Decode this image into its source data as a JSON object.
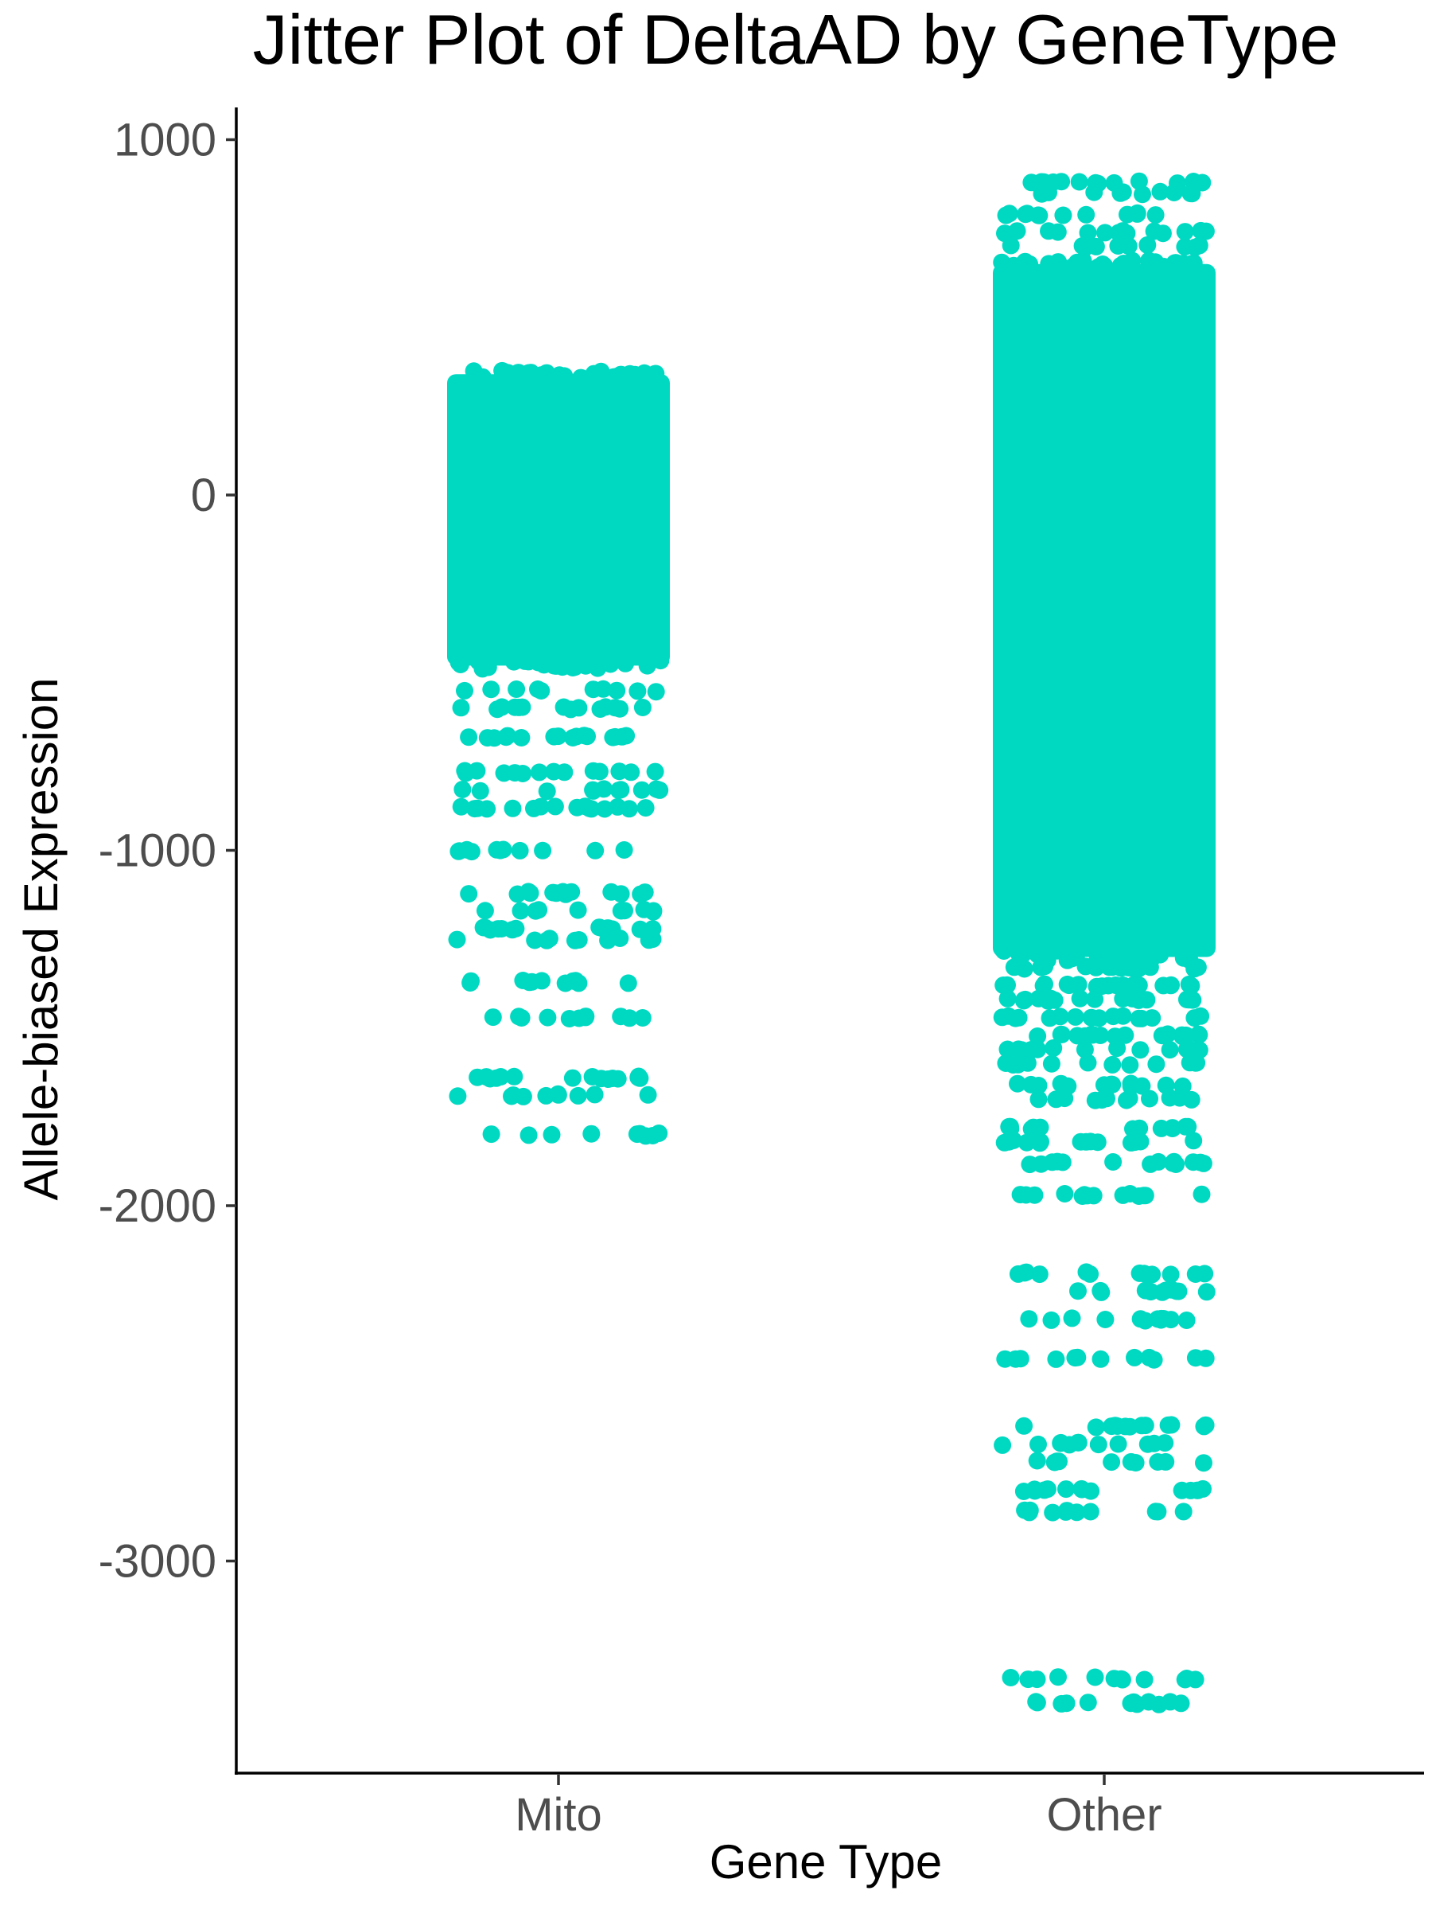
{
  "chart_data": {
    "type": "scatter",
    "title": "Jitter Plot of DeltaAD by GeneType",
    "xlabel": "Gene Type",
    "ylabel": "Allele-biased Expression",
    "categories": [
      "Mito",
      "Other"
    ],
    "ylim": [
      -3600,
      1100
    ],
    "y_ticks": [
      1000,
      0,
      -1000,
      -2000,
      -3000
    ],
    "y_tick_labels": [
      "1000",
      "0",
      "-1000",
      "-2000",
      "-3000"
    ],
    "grid": false,
    "legend": "none",
    "point_color": "#00d9c2",
    "series": [
      {
        "category": "Mito",
        "dense_range": [
          -480,
          340
        ],
        "sparse_levels": [
          {
            "y": -550,
            "n": 10
          },
          {
            "y": -600,
            "n": 14
          },
          {
            "y": -680,
            "n": 16
          },
          {
            "y": -780,
            "n": 14
          },
          {
            "y": -830,
            "n": 12
          },
          {
            "y": -880,
            "n": 16
          },
          {
            "y": -1000,
            "n": 11
          },
          {
            "y": -1120,
            "n": 14
          },
          {
            "y": -1170,
            "n": 10
          },
          {
            "y": -1220,
            "n": 14
          },
          {
            "y": -1250,
            "n": 10
          },
          {
            "y": -1370,
            "n": 11
          },
          {
            "y": -1470,
            "n": 11
          },
          {
            "y": -1640,
            "n": 15
          },
          {
            "y": -1690,
            "n": 10
          },
          {
            "y": -1800,
            "n": 9
          }
        ]
      },
      {
        "category": "Other",
        "dense_range": [
          -1300,
          650
        ],
        "sparse_levels": [
          {
            "y": 880,
            "n": 14
          },
          {
            "y": 850,
            "n": 10
          },
          {
            "y": 790,
            "n": 12
          },
          {
            "y": 740,
            "n": 14
          },
          {
            "y": 700,
            "n": 10
          },
          {
            "y": -1330,
            "n": 18
          },
          {
            "y": -1380,
            "n": 20
          },
          {
            "y": -1420,
            "n": 18
          },
          {
            "y": -1470,
            "n": 16
          },
          {
            "y": -1520,
            "n": 18
          },
          {
            "y": -1560,
            "n": 16
          },
          {
            "y": -1600,
            "n": 12
          },
          {
            "y": -1660,
            "n": 14
          },
          {
            "y": -1700,
            "n": 12
          },
          {
            "y": -1780,
            "n": 16
          },
          {
            "y": -1820,
            "n": 14
          },
          {
            "y": -1880,
            "n": 14
          },
          {
            "y": -1970,
            "n": 14
          },
          {
            "y": -2190,
            "n": 12
          },
          {
            "y": -2240,
            "n": 12
          },
          {
            "y": -2320,
            "n": 12
          },
          {
            "y": -2430,
            "n": 12
          },
          {
            "y": -2620,
            "n": 13
          },
          {
            "y": -2670,
            "n": 12
          },
          {
            "y": -2720,
            "n": 10
          },
          {
            "y": -2800,
            "n": 14
          },
          {
            "y": -2860,
            "n": 12
          },
          {
            "y": -3330,
            "n": 12
          },
          {
            "y": -3400,
            "n": 12
          }
        ]
      }
    ]
  }
}
